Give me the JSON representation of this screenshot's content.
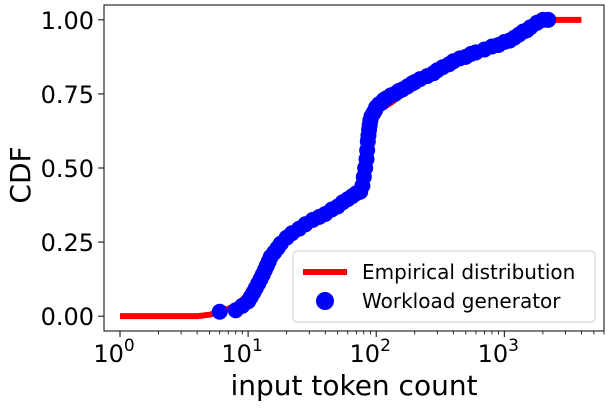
{
  "chart_data": {
    "type": "line",
    "xlabel": "input token count",
    "ylabel": "CDF",
    "xscale": "log",
    "xlim": [
      0.75,
      6000
    ],
    "ylim": [
      -0.05,
      1.05
    ],
    "xticks": [
      {
        "value": 1,
        "base": "10",
        "exp": "0"
      },
      {
        "value": 10,
        "base": "10",
        "exp": "1"
      },
      {
        "value": 100,
        "base": "10",
        "exp": "2"
      },
      {
        "value": 1000,
        "base": "10",
        "exp": "3"
      }
    ],
    "yticks": [
      {
        "value": 0.0,
        "label": "0.00"
      },
      {
        "value": 0.25,
        "label": "0.25"
      },
      {
        "value": 0.5,
        "label": "0.50"
      },
      {
        "value": 0.75,
        "label": "0.75"
      },
      {
        "value": 1.0,
        "label": "1.00"
      }
    ],
    "grid": false,
    "legend_position": "bottom-right",
    "series": [
      {
        "name": "Empirical distribution",
        "kind": "line",
        "color": "#ff0000",
        "x": [
          1,
          2,
          4,
          5,
          6,
          7,
          8,
          9,
          10,
          11,
          12,
          13,
          14,
          15,
          17,
          20,
          25,
          30,
          40,
          50,
          60,
          70,
          75,
          80,
          82,
          84,
          86,
          88,
          90,
          95,
          100,
          110,
          130,
          150,
          180,
          200,
          250,
          300,
          400,
          500,
          600,
          800,
          1000,
          1300,
          1500,
          1800,
          2000,
          2200,
          4000
        ],
        "y": [
          0.0,
          0.0,
          0.0,
          0.005,
          0.015,
          0.025,
          0.035,
          0.055,
          0.075,
          0.1,
          0.125,
          0.15,
          0.175,
          0.2,
          0.235,
          0.27,
          0.3,
          0.32,
          0.345,
          0.37,
          0.39,
          0.41,
          0.42,
          0.45,
          0.5,
          0.55,
          0.6,
          0.63,
          0.66,
          0.68,
          0.69,
          0.7,
          0.72,
          0.74,
          0.76,
          0.775,
          0.8,
          0.82,
          0.85,
          0.87,
          0.885,
          0.905,
          0.92,
          0.94,
          0.96,
          0.98,
          0.99,
          1.0,
          1.0
        ]
      },
      {
        "name": "Workload generator",
        "kind": "scatter",
        "color": "#0000ff",
        "x": [
          6,
          8,
          9,
          10,
          10.5,
          11,
          11.5,
          12,
          12.5,
          13,
          13.5,
          14,
          14.5,
          15,
          16,
          17,
          18,
          20,
          22,
          25,
          28,
          32,
          36,
          40,
          45,
          50,
          55,
          60,
          65,
          70,
          75,
          78,
          80,
          82,
          84,
          85,
          86,
          87,
          88,
          89,
          90,
          92,
          95,
          98,
          100,
          105,
          110,
          115,
          120,
          130,
          140,
          150,
          160,
          175,
          190,
          200,
          220,
          250,
          280,
          300,
          330,
          370,
          400,
          450,
          500,
          550,
          600,
          700,
          800,
          900,
          1000,
          1100,
          1200,
          1300,
          1400,
          1500,
          1600,
          1800,
          2000,
          2200
        ],
        "y": [
          0.015,
          0.02,
          0.035,
          0.05,
          0.065,
          0.08,
          0.095,
          0.11,
          0.125,
          0.14,
          0.155,
          0.17,
          0.185,
          0.2,
          0.215,
          0.23,
          0.245,
          0.265,
          0.28,
          0.295,
          0.31,
          0.325,
          0.335,
          0.345,
          0.36,
          0.37,
          0.385,
          0.395,
          0.405,
          0.415,
          0.42,
          0.44,
          0.47,
          0.5,
          0.53,
          0.56,
          0.59,
          0.61,
          0.63,
          0.645,
          0.66,
          0.675,
          0.685,
          0.695,
          0.705,
          0.715,
          0.72,
          0.73,
          0.735,
          0.745,
          0.75,
          0.76,
          0.765,
          0.775,
          0.785,
          0.79,
          0.8,
          0.81,
          0.82,
          0.83,
          0.84,
          0.85,
          0.86,
          0.87,
          0.875,
          0.885,
          0.89,
          0.9,
          0.91,
          0.915,
          0.925,
          0.93,
          0.94,
          0.95,
          0.96,
          0.965,
          0.975,
          0.99,
          1.0,
          1.0
        ]
      }
    ]
  }
}
